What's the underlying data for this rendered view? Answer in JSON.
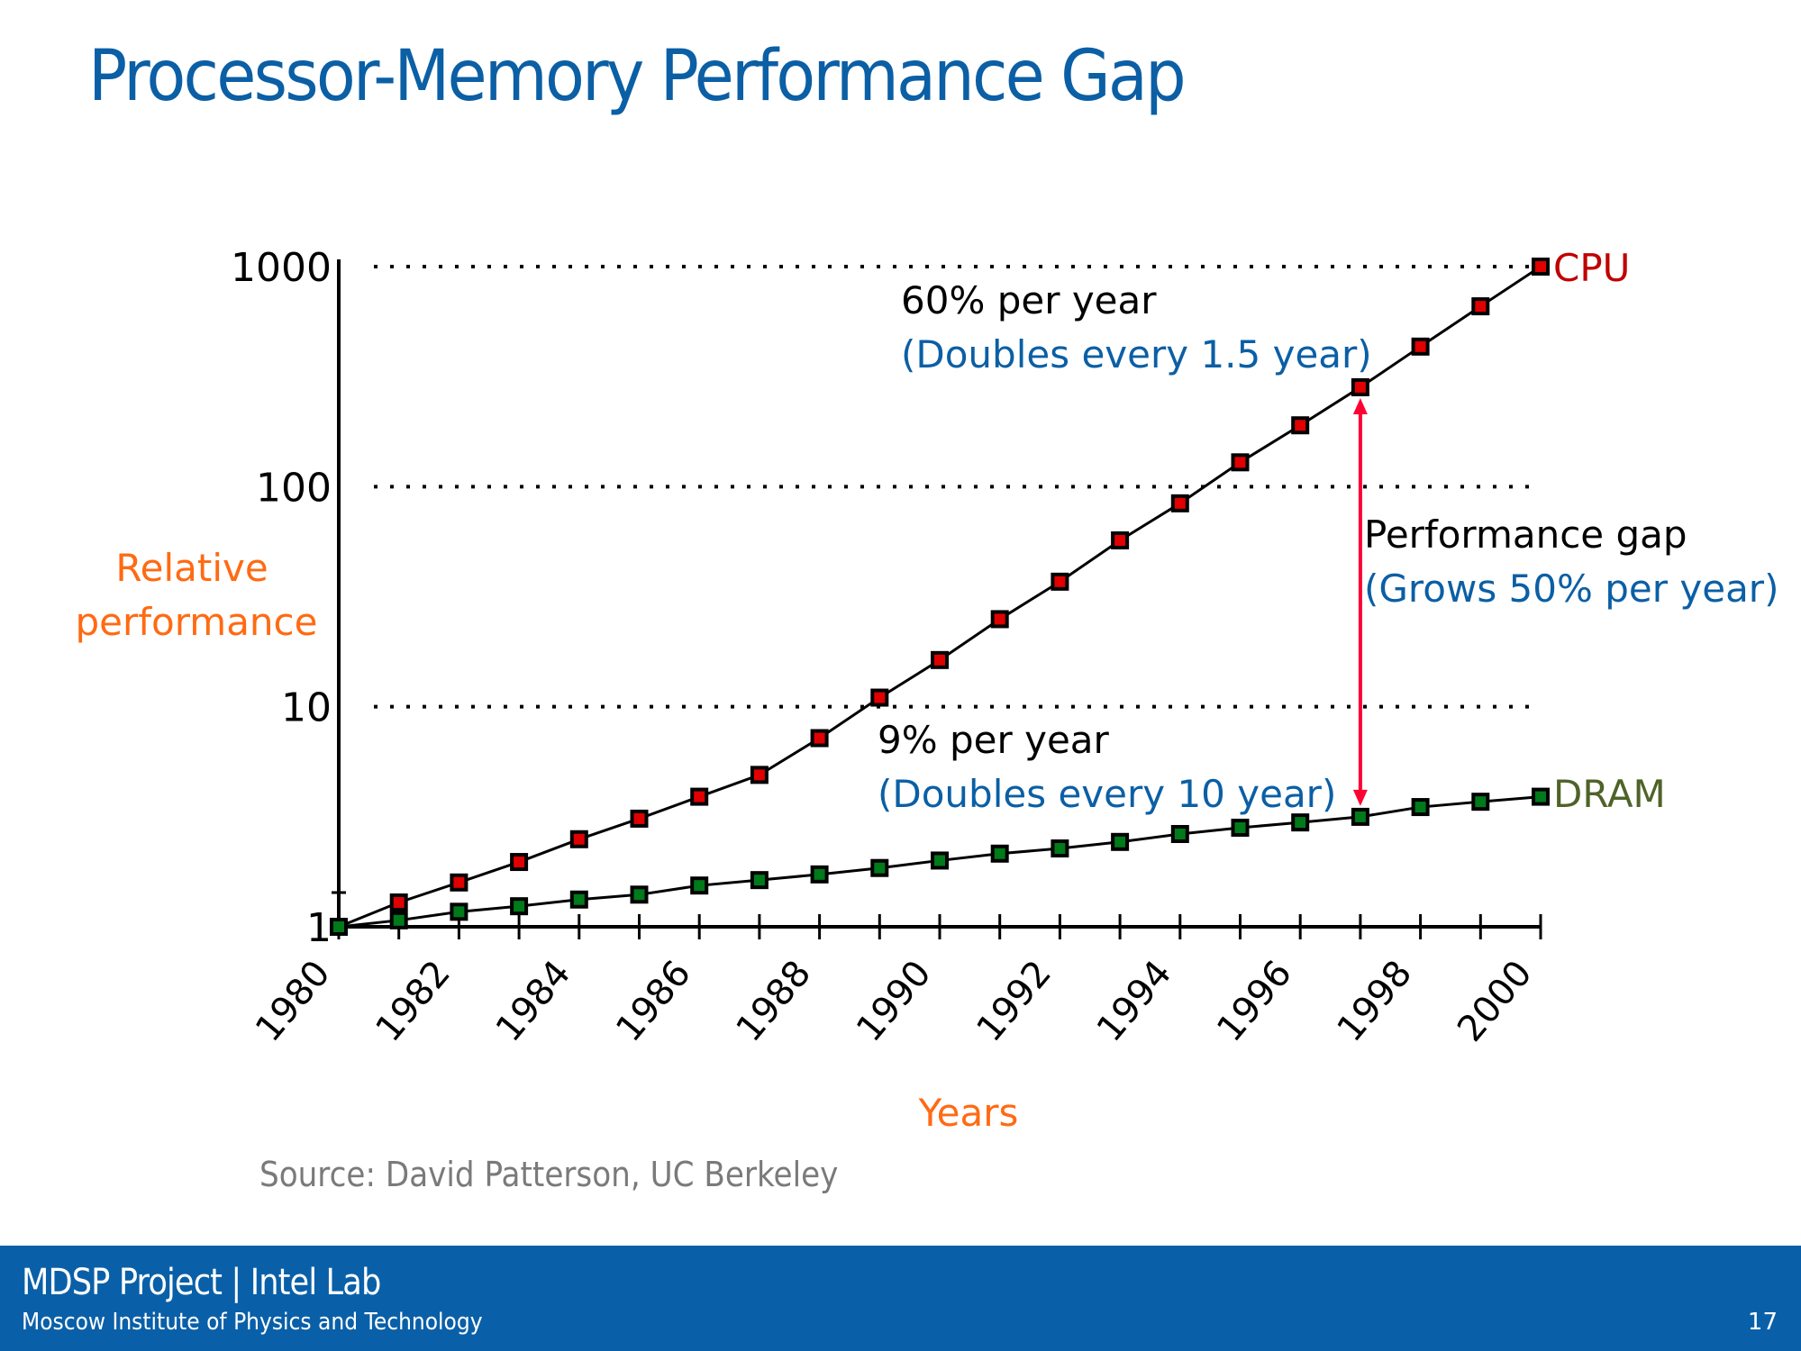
{
  "slide": {
    "title": "Processor-Memory Performance Gap",
    "source": "Source: David Patterson, UC Berkeley",
    "footer": {
      "org": "MDSP Project | Intel Lab",
      "institute": "Moscow Institute of Physics and Technology",
      "page_number": "17",
      "background_color": "#0a60a8"
    }
  },
  "chart_data": {
    "type": "line",
    "title": "",
    "xlabel": "Years",
    "ylabel": "Relative performance",
    "y_scale": "log",
    "ylim": [
      1,
      1000
    ],
    "xlim": [
      1980,
      2000
    ],
    "grid": "horizontal dotted at 10, 100, 1000",
    "y_ticks": [
      1,
      10,
      100,
      1000
    ],
    "y_tick_labels": [
      "1",
      "10",
      "100",
      "1000"
    ],
    "x_ticks": [
      1980,
      1981,
      1982,
      1983,
      1984,
      1985,
      1986,
      1987,
      1988,
      1989,
      1990,
      1991,
      1992,
      1993,
      1994,
      1995,
      1996,
      1997,
      1998,
      1999,
      2000
    ],
    "x_tick_labels": [
      "1980",
      "1982",
      "1984",
      "1986",
      "1988",
      "1990",
      "1992",
      "1994",
      "1996",
      "1998",
      "2000"
    ],
    "x": [
      1980,
      1981,
      1982,
      1983,
      1984,
      1985,
      1986,
      1987,
      1988,
      1989,
      1990,
      1991,
      1992,
      1993,
      1994,
      1995,
      1996,
      1997,
      1998,
      1999,
      2000
    ],
    "series": [
      {
        "name": "CPU",
        "color": "#c00000",
        "marker_color": "#e00000",
        "values": [
          1,
          1.29,
          1.59,
          1.97,
          2.5,
          3.1,
          3.9,
          4.9,
          7.2,
          11,
          16.3,
          25,
          37,
          57,
          84,
          129,
          190,
          283,
          433,
          660,
          1000
        ]
      },
      {
        "name": "DRAM",
        "color": "#4f6228",
        "marker_color": "#007a1a",
        "values": [
          1,
          1.07,
          1.17,
          1.24,
          1.33,
          1.4,
          1.54,
          1.63,
          1.73,
          1.85,
          2.0,
          2.15,
          2.27,
          2.43,
          2.64,
          2.82,
          2.98,
          3.16,
          3.5,
          3.7,
          3.9
        ]
      }
    ],
    "annotations": [
      {
        "id": "cpu-rate",
        "text": "60% per year",
        "subtext": "(Doubles every 1.5 year)"
      },
      {
        "id": "dram-rate",
        "text": "9% per year",
        "subtext": "(Doubles every 10 year)"
      },
      {
        "id": "gap",
        "text": "Performance gap",
        "subtext": "(Grows 50% per year)",
        "arrow_year": 1997,
        "arrow_color": "#ff0033"
      }
    ]
  }
}
